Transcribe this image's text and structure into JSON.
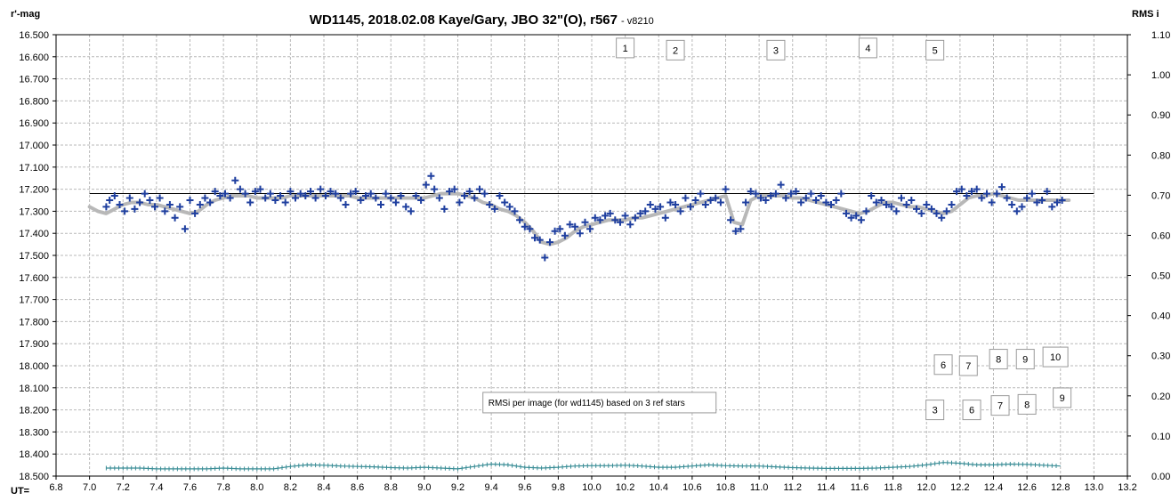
{
  "chart_data": {
    "type": "scatter",
    "title": "WD1145, 2018.02.08  Kaye/Gary, JBO 32\"(O), r567",
    "version": "- v8210",
    "y_left_label": "r'-mag",
    "y_right_label": "RMS i",
    "x_label": "UT=",
    "xlim": [
      6.8,
      13.2
    ],
    "x_ticks": [
      "6.8",
      "7.0",
      "7.2",
      "7.4",
      "7.6",
      "7.8",
      "8.0",
      "8.2",
      "8.4",
      "8.6",
      "8.8",
      "9.0",
      "9.2",
      "9.4",
      "9.6",
      "9.8",
      "10.0",
      "10.2",
      "10.4",
      "10.6",
      "10.8",
      "11.0",
      "11.2",
      "11.4",
      "11.6",
      "11.8",
      "12.0",
      "12.2",
      "12.4",
      "12.6",
      "12.8",
      "13.0",
      "13.2"
    ],
    "ylim_left": [
      16.5,
      18.5
    ],
    "y_left_inverted": true,
    "y_left_ticks": [
      "16.500",
      "16.600",
      "16.700",
      "16.800",
      "16.900",
      "17.000",
      "17.100",
      "17.200",
      "17.300",
      "17.400",
      "17.500",
      "17.600",
      "17.700",
      "17.800",
      "17.900",
      "18.000",
      "18.100",
      "18.200",
      "18.300",
      "18.400",
      "18.500"
    ],
    "ylim_right": [
      0.0,
      1.1
    ],
    "y_right_ticks": [
      "1.10",
      "1.00",
      "0.90",
      "0.80",
      "0.70",
      "0.60",
      "0.50",
      "0.40",
      "0.30",
      "0.20",
      "0.10",
      "0.00"
    ],
    "grid": true,
    "reference_mag": 17.22,
    "reference_x": [
      7.0,
      13.0
    ],
    "series": [
      {
        "role": "magnitude",
        "marker": "plus",
        "color": "#1f3f9f",
        "x": [
          7.1,
          7.12,
          7.15,
          7.18,
          7.21,
          7.24,
          7.27,
          7.3,
          7.33,
          7.36,
          7.39,
          7.42,
          7.45,
          7.48,
          7.51,
          7.54,
          7.57,
          7.6,
          7.63,
          7.66,
          7.69,
          7.72,
          7.75,
          7.78,
          7.81,
          7.84,
          7.87,
          7.9,
          7.93,
          7.96,
          7.99,
          8.02,
          8.05,
          8.08,
          8.11,
          8.14,
          8.17,
          8.2,
          8.23,
          8.26,
          8.29,
          8.32,
          8.35,
          8.38,
          8.41,
          8.44,
          8.47,
          8.5,
          8.53,
          8.56,
          8.59,
          8.62,
          8.65,
          8.68,
          8.71,
          8.74,
          8.77,
          8.8,
          8.83,
          8.86,
          8.89,
          8.92,
          8.95,
          8.98,
          9.01,
          9.04,
          9.06,
          9.09,
          9.12,
          9.15,
          9.18,
          9.21,
          9.24,
          9.27,
          9.3,
          9.33,
          9.36,
          9.39,
          9.42,
          9.45,
          9.48,
          9.51,
          9.54,
          9.57,
          9.6,
          9.63,
          9.66,
          9.69,
          9.72,
          9.75,
          9.78,
          9.81,
          9.84,
          9.87,
          9.9,
          9.93,
          9.96,
          9.99,
          10.02,
          10.05,
          10.08,
          10.11,
          10.14,
          10.17,
          10.2,
          10.23,
          10.26,
          10.29,
          10.32,
          10.35,
          10.38,
          10.41,
          10.44,
          10.47,
          10.5,
          10.53,
          10.56,
          10.59,
          10.62,
          10.65,
          10.68,
          10.71,
          10.74,
          10.77,
          10.8,
          10.83,
          10.86,
          10.89,
          10.92,
          10.95,
          10.98,
          11.01,
          11.04,
          11.07,
          11.1,
          11.13,
          11.16,
          11.19,
          11.22,
          11.25,
          11.28,
          11.31,
          11.34,
          11.37,
          11.4,
          11.43,
          11.46,
          11.49,
          11.52,
          11.55,
          11.58,
          11.61,
          11.64,
          11.67,
          11.7,
          11.73,
          11.76,
          11.79,
          11.82,
          11.85,
          11.88,
          11.91,
          11.94,
          11.97,
          12.0,
          12.03,
          12.06,
          12.09,
          12.12,
          12.15,
          12.18,
          12.21,
          12.24,
          12.27,
          12.3,
          12.33,
          12.36,
          12.39,
          12.42,
          12.45,
          12.48,
          12.51,
          12.54,
          12.57,
          12.6,
          12.63,
          12.66,
          12.69,
          12.72,
          12.75,
          12.78,
          12.81
        ],
        "y": [
          17.28,
          17.25,
          17.23,
          17.27,
          17.3,
          17.24,
          17.29,
          17.26,
          17.22,
          17.25,
          17.28,
          17.24,
          17.3,
          17.27,
          17.33,
          17.28,
          17.38,
          17.25,
          17.31,
          17.27,
          17.24,
          17.26,
          17.21,
          17.23,
          17.22,
          17.24,
          17.16,
          17.2,
          17.22,
          17.26,
          17.21,
          17.2,
          17.24,
          17.22,
          17.25,
          17.23,
          17.26,
          17.21,
          17.24,
          17.22,
          17.23,
          17.21,
          17.24,
          17.2,
          17.23,
          17.21,
          17.22,
          17.24,
          17.27,
          17.22,
          17.21,
          17.25,
          17.23,
          17.22,
          17.24,
          17.27,
          17.22,
          17.24,
          17.26,
          17.23,
          17.28,
          17.3,
          17.23,
          17.25,
          17.18,
          17.14,
          17.2,
          17.24,
          17.29,
          17.21,
          17.2,
          17.26,
          17.23,
          17.21,
          17.24,
          17.2,
          17.22,
          17.27,
          17.29,
          17.23,
          17.26,
          17.28,
          17.3,
          17.34,
          17.37,
          17.38,
          17.42,
          17.43,
          17.51,
          17.44,
          17.39,
          17.38,
          17.41,
          17.36,
          17.37,
          17.4,
          17.35,
          17.38,
          17.33,
          17.34,
          17.32,
          17.31,
          17.34,
          17.35,
          17.32,
          17.36,
          17.33,
          17.31,
          17.3,
          17.27,
          17.29,
          17.28,
          17.33,
          17.26,
          17.27,
          17.3,
          17.24,
          17.28,
          17.25,
          17.22,
          17.27,
          17.25,
          17.24,
          17.26,
          17.2,
          17.34,
          17.39,
          17.38,
          17.26,
          17.21,
          17.22,
          17.24,
          17.25,
          17.23,
          17.22,
          17.18,
          17.24,
          17.22,
          17.21,
          17.26,
          17.24,
          17.22,
          17.25,
          17.23,
          17.26,
          17.27,
          17.25,
          17.22,
          17.31,
          17.33,
          17.32,
          17.34,
          17.3,
          17.23,
          17.26,
          17.25,
          17.27,
          17.28,
          17.3,
          17.24,
          17.27,
          17.25,
          17.29,
          17.31,
          17.27,
          17.29,
          17.31,
          17.33,
          17.3,
          17.27,
          17.21,
          17.2,
          17.23,
          17.21,
          17.2,
          17.24,
          17.22,
          17.26,
          17.22,
          17.19,
          17.24,
          17.27,
          17.3,
          17.28,
          17.24,
          17.22,
          17.26,
          17.25,
          17.21,
          17.28,
          17.26,
          17.25
        ]
      },
      {
        "role": "trend",
        "color": "#b8b8b8",
        "x": [
          7.0,
          7.05,
          7.1,
          7.15,
          7.2,
          7.25,
          7.3,
          7.35,
          7.4,
          7.45,
          7.5,
          7.55,
          7.6,
          7.65,
          7.7,
          7.75,
          7.8,
          7.85,
          7.9,
          7.95,
          8.0,
          8.05,
          8.1,
          8.15,
          8.2,
          8.25,
          8.3,
          8.35,
          8.4,
          8.45,
          8.5,
          8.55,
          8.6,
          8.65,
          8.7,
          8.75,
          8.8,
          8.85,
          8.9,
          8.95,
          9.0,
          9.05,
          9.1,
          9.15,
          9.2,
          9.25,
          9.3,
          9.35,
          9.4,
          9.45,
          9.5,
          9.55,
          9.6,
          9.65,
          9.7,
          9.75,
          9.8,
          9.85,
          9.9,
          9.95,
          10.0,
          10.05,
          10.1,
          10.15,
          10.2,
          10.25,
          10.3,
          10.35,
          10.4,
          10.45,
          10.5,
          10.55,
          10.6,
          10.65,
          10.7,
          10.75,
          10.8,
          10.85,
          10.9,
          10.95,
          11.0,
          11.05,
          11.1,
          11.15,
          11.2,
          11.25,
          11.3,
          11.35,
          11.4,
          11.45,
          11.5,
          11.55,
          11.6,
          11.65,
          11.7,
          11.75,
          11.8,
          11.85,
          11.9,
          11.95,
          12.0,
          12.05,
          12.1,
          12.15,
          12.2,
          12.25,
          12.3,
          12.35,
          12.4,
          12.45,
          12.5,
          12.55,
          12.6,
          12.65,
          12.7,
          12.75,
          12.8,
          12.85
        ],
        "y": [
          17.28,
          17.3,
          17.31,
          17.29,
          17.27,
          17.26,
          17.26,
          17.27,
          17.27,
          17.28,
          17.29,
          17.3,
          17.31,
          17.3,
          17.27,
          17.25,
          17.24,
          17.23,
          17.23,
          17.23,
          17.24,
          17.24,
          17.24,
          17.24,
          17.23,
          17.23,
          17.23,
          17.23,
          17.23,
          17.23,
          17.23,
          17.23,
          17.24,
          17.24,
          17.24,
          17.24,
          17.24,
          17.24,
          17.24,
          17.24,
          17.24,
          17.23,
          17.22,
          17.22,
          17.22,
          17.23,
          17.24,
          17.26,
          17.27,
          17.29,
          17.3,
          17.32,
          17.35,
          17.39,
          17.44,
          17.45,
          17.44,
          17.42,
          17.39,
          17.37,
          17.36,
          17.35,
          17.34,
          17.34,
          17.34,
          17.33,
          17.33,
          17.32,
          17.31,
          17.3,
          17.29,
          17.28,
          17.27,
          17.26,
          17.25,
          17.24,
          17.23,
          17.35,
          17.36,
          17.25,
          17.23,
          17.23,
          17.23,
          17.23,
          17.24,
          17.24,
          17.25,
          17.26,
          17.27,
          17.28,
          17.29,
          17.3,
          17.31,
          17.3,
          17.28,
          17.26,
          17.26,
          17.27,
          17.28,
          17.28,
          17.29,
          17.3,
          17.31,
          17.3,
          17.27,
          17.24,
          17.23,
          17.23,
          17.22,
          17.23,
          17.24,
          17.25,
          17.25,
          17.25,
          17.25,
          17.25,
          17.25,
          17.25
        ]
      },
      {
        "role": "rms",
        "axis": "right",
        "color": "#3a8d96",
        "x": [
          7.1,
          7.2,
          7.3,
          7.4,
          7.5,
          7.6,
          7.7,
          7.8,
          7.9,
          8.0,
          8.1,
          8.2,
          8.3,
          8.4,
          8.5,
          8.6,
          8.7,
          8.8,
          8.9,
          9.0,
          9.1,
          9.2,
          9.3,
          9.4,
          9.5,
          9.6,
          9.7,
          9.8,
          9.9,
          10.0,
          10.1,
          10.2,
          10.3,
          10.4,
          10.5,
          10.6,
          10.7,
          10.8,
          10.9,
          11.0,
          11.1,
          11.2,
          11.3,
          11.4,
          11.5,
          11.6,
          11.7,
          11.8,
          11.9,
          12.0,
          12.1,
          12.2,
          12.3,
          12.4,
          12.5,
          12.6,
          12.7,
          12.8
        ],
        "y": [
          0.02,
          0.02,
          0.02,
          0.018,
          0.018,
          0.018,
          0.018,
          0.02,
          0.018,
          0.018,
          0.018,
          0.024,
          0.028,
          0.027,
          0.025,
          0.024,
          0.023,
          0.021,
          0.02,
          0.022,
          0.02,
          0.018,
          0.024,
          0.03,
          0.028,
          0.022,
          0.02,
          0.022,
          0.025,
          0.026,
          0.026,
          0.027,
          0.025,
          0.022,
          0.022,
          0.025,
          0.028,
          0.026,
          0.025,
          0.025,
          0.023,
          0.021,
          0.02,
          0.019,
          0.019,
          0.019,
          0.02,
          0.022,
          0.024,
          0.028,
          0.034,
          0.032,
          0.028,
          0.028,
          0.03,
          0.029,
          0.027,
          0.025
        ]
      }
    ],
    "event_labels_top": [
      {
        "text": "1",
        "x": 10.2,
        "mag": 16.56
      },
      {
        "text": "2",
        "x": 10.5,
        "mag": 16.57
      },
      {
        "text": "3",
        "x": 11.1,
        "mag": 16.57
      },
      {
        "text": "4",
        "x": 11.65,
        "mag": 16.56
      },
      {
        "text": "5",
        "x": 12.05,
        "mag": 16.57
      }
    ],
    "event_labels_mid": [
      {
        "text": "6",
        "x": 12.1,
        "mag": 17.995
      },
      {
        "text": "7",
        "x": 12.25,
        "mag": 18.0
      },
      {
        "text": "8",
        "x": 12.43,
        "mag": 17.97
      },
      {
        "text": "9",
        "x": 12.59,
        "mag": 17.97
      },
      {
        "text": "10",
        "x": 12.77,
        "mag": 17.96
      }
    ],
    "event_labels_low": [
      {
        "text": "3",
        "x": 12.05,
        "mag": 18.2
      },
      {
        "text": "6",
        "x": 12.27,
        "mag": 18.2
      },
      {
        "text": "7",
        "x": 12.44,
        "mag": 18.18
      },
      {
        "text": "8",
        "x": 12.6,
        "mag": 18.175
      },
      {
        "text": "9",
        "x": 12.81,
        "mag": 18.145
      }
    ],
    "note": {
      "text": "RMSi per image (for wd1145) based on 3 ref stars",
      "x": 9.35,
      "mag": 18.165
    }
  }
}
